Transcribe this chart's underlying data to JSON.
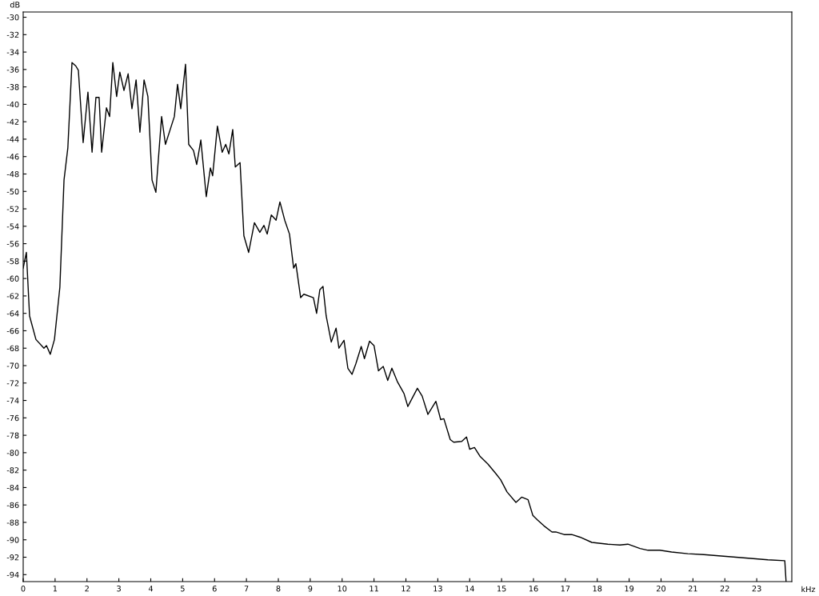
{
  "chart_data": {
    "type": "line",
    "xlabel": "kHz",
    "ylabel": "dB",
    "xlim": [
      0,
      24.1
    ],
    "ylim": [
      -94.8,
      -29.4
    ],
    "xticks": [
      0,
      1,
      2,
      3,
      4,
      5,
      6,
      7,
      8,
      9,
      10,
      11,
      12,
      13,
      14,
      15,
      16,
      17,
      18,
      19,
      20,
      21,
      22,
      23
    ],
    "yticks": [
      -30,
      -32,
      -34,
      -36,
      -38,
      -40,
      -42,
      -44,
      -46,
      -48,
      -50,
      -52,
      -54,
      -56,
      -58,
      -60,
      -62,
      -64,
      -66,
      -68,
      -70,
      -72,
      -74,
      -76,
      -78,
      -80,
      -82,
      -84,
      -86,
      -88,
      -90,
      -92,
      -94
    ],
    "grid": false,
    "legend": false,
    "marker": "none",
    "line_style": "solid",
    "series": [
      {
        "color": "#000000",
        "x": [
          0,
          0.1,
          0.2,
          0.4,
          0.65,
          0.73,
          0.85,
          0.98,
          1.15,
          1.28,
          1.4,
          1.53,
          1.65,
          1.73,
          1.88,
          2.03,
          2.16,
          2.28,
          2.38,
          2.46,
          2.61,
          2.71,
          2.81,
          2.93,
          3.03,
          3.16,
          3.29,
          3.41,
          3.54,
          3.66,
          3.79,
          3.91,
          4.04,
          4.16,
          4.34,
          4.46,
          4.74,
          4.84,
          4.94,
          5.09,
          5.19,
          5.34,
          5.44,
          5.57,
          5.74,
          5.87,
          5.94,
          6.09,
          6.24,
          6.35,
          6.45,
          6.57,
          6.65,
          6.8,
          6.92,
          7.07,
          7.25,
          7.42,
          7.55,
          7.65,
          7.78,
          7.93,
          8.05,
          8.2,
          8.35,
          8.48,
          8.55,
          8.7,
          8.8,
          9.1,
          9.2,
          9.3,
          9.4,
          9.5,
          9.66,
          9.81,
          9.9,
          10.06,
          10.18,
          10.31,
          10.43,
          10.6,
          10.7,
          10.86,
          11.0,
          11.14,
          11.29,
          11.43,
          11.56,
          11.74,
          11.94,
          12.06,
          12.36,
          12.51,
          12.69,
          12.94,
          13.09,
          13.19,
          13.39,
          13.5,
          13.75,
          13.9,
          14.0,
          14.15,
          14.32,
          14.57,
          14.82,
          14.97,
          15.17,
          15.45,
          15.63,
          15.83,
          15.98,
          16.12,
          16.33,
          16.58,
          16.7,
          16.96,
          17.2,
          17.46,
          17.83,
          18.33,
          18.71,
          18.96,
          19.34,
          19.59,
          19.96,
          20.33,
          20.84,
          21.34,
          22.35,
          23.35,
          23.88,
          23.92
        ],
        "values": [
          -58.8,
          -57,
          -64.3,
          -67,
          -68,
          -67.7,
          -68.7,
          -67,
          -61,
          -48.7,
          -45,
          -35.2,
          -35.6,
          -36.1,
          -44.4,
          -38.6,
          -45.5,
          -39.2,
          -39.2,
          -45.5,
          -40.4,
          -41.4,
          -35.2,
          -39.1,
          -36.3,
          -38.4,
          -36.5,
          -40.5,
          -37.2,
          -43.2,
          -37.2,
          -39.1,
          -48.7,
          -50.1,
          -41.4,
          -44.6,
          -41.4,
          -37.7,
          -40.5,
          -35.4,
          -44.6,
          -45.3,
          -46.9,
          -44.1,
          -50.6,
          -47.3,
          -48.2,
          -42.5,
          -45.5,
          -44.6,
          -45.7,
          -42.9,
          -47.2,
          -46.7,
          -55.1,
          -57,
          -53.6,
          -54.7,
          -53.9,
          -54.9,
          -52.7,
          -53.3,
          -51.2,
          -53.3,
          -54.9,
          -58.8,
          -58.3,
          -62.2,
          -61.8,
          -62.2,
          -64,
          -61.3,
          -60.9,
          -64.3,
          -67.3,
          -65.7,
          -68,
          -67.1,
          -70.3,
          -71,
          -69.8,
          -67.8,
          -69.2,
          -67.2,
          -67.7,
          -70.6,
          -70.1,
          -71.7,
          -70.3,
          -71.9,
          -73.2,
          -74.7,
          -72.6,
          -73.5,
          -75.6,
          -74.1,
          -76.2,
          -76.1,
          -78.5,
          -78.8,
          -78.7,
          -78.2,
          -79.6,
          -79.4,
          -80.4,
          -81.3,
          -82.4,
          -83.1,
          -84.5,
          -85.7,
          -85.1,
          -85.4,
          -87.2,
          -87.7,
          -88.4,
          -89.1,
          -89.1,
          -89.4,
          -89.4,
          -89.7,
          -90.3,
          -90.5,
          -90.6,
          -90.5,
          -91,
          -91.2,
          -91.2,
          -91.4,
          -91.6,
          -91.7,
          -92,
          -92.3,
          -92.4,
          -94.8
        ]
      }
    ]
  }
}
